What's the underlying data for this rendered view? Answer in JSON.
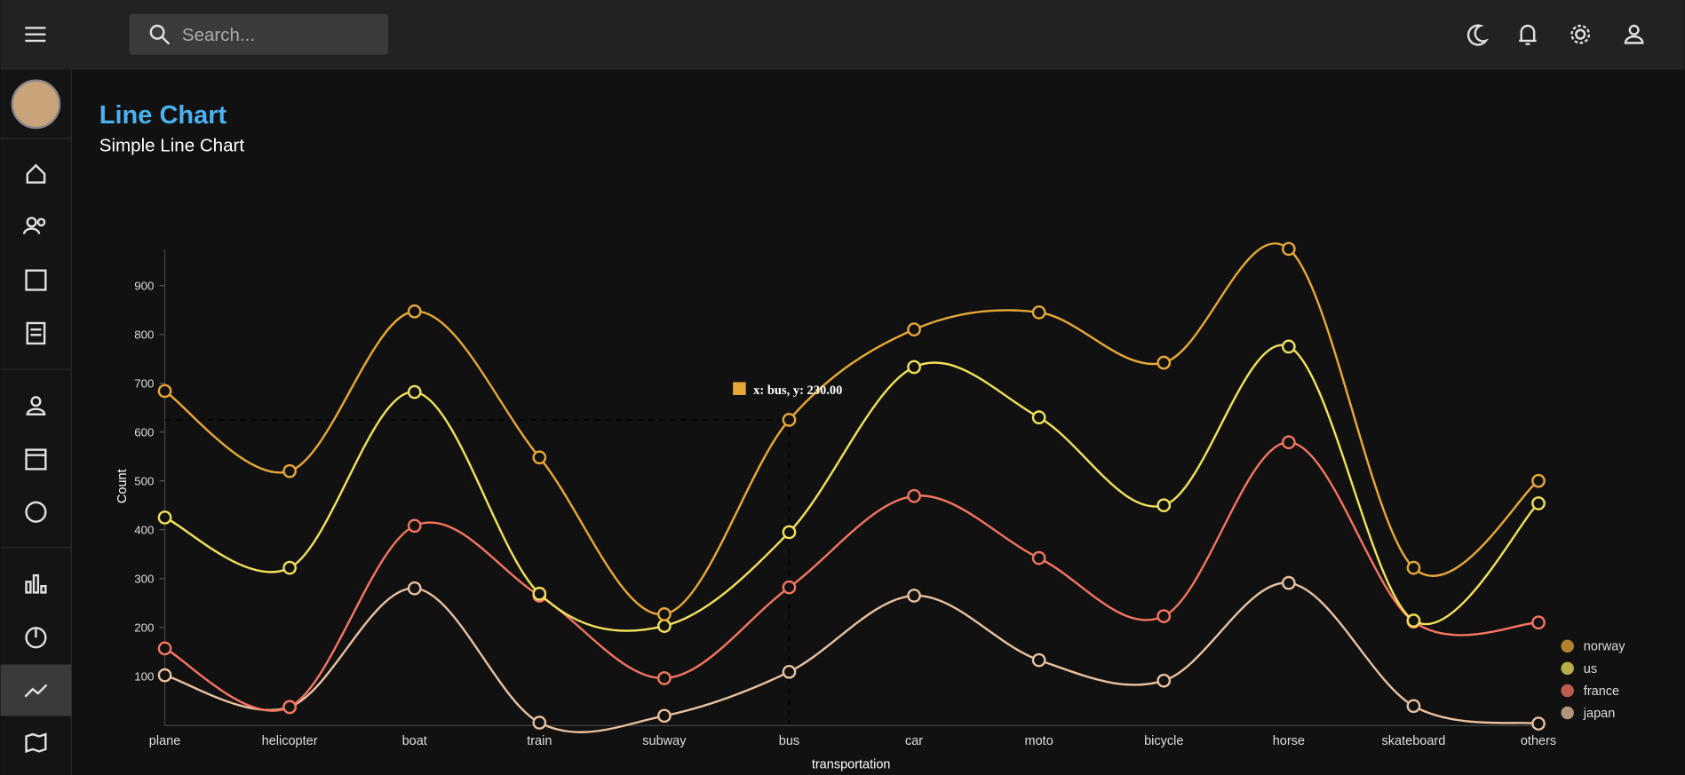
{
  "header": {
    "search_placeholder": "Search..."
  },
  "chart_data": {
    "type": "line",
    "stacked": true,
    "curve": "catmullRom",
    "title": "Line Chart",
    "subtitle": "Simple Line Chart",
    "x_label": "transportation",
    "y_label": "Count",
    "categories": [
      "plane",
      "helicopter",
      "boat",
      "train",
      "subway",
      "bus",
      "car",
      "moto",
      "bicycle",
      "horse",
      "skateboard",
      "others"
    ],
    "series": [
      {
        "name": "norway",
        "color": "#e8a838",
        "values": [
          259,
          198,
          165,
          279,
          24,
          230,
          77,
          215,
          292,
          200,
          108,
          46
        ]
      },
      {
        "name": "us",
        "color": "#f1e15b",
        "values": [
          268,
          285,
          274,
          4,
          107,
          113,
          264,
          288,
          227,
          196,
          2,
          244
        ]
      },
      {
        "name": "france",
        "color": "#f47560",
        "values": [
          55,
          0,
          128,
          260,
          77,
          173,
          204,
          209,
          132,
          288,
          173,
          207
        ]
      },
      {
        "name": "japan",
        "color": "#e8c1a0",
        "values": [
          102,
          37,
          280,
          5,
          19,
          109,
          265,
          133,
          91,
          291,
          39,
          3
        ]
      }
    ],
    "ylim": [
      0,
      976
    ],
    "yticks": [
      100,
      200,
      300,
      400,
      500,
      600,
      700,
      800,
      900
    ],
    "legend": "bottom-right",
    "tooltip": {
      "label": "x: bus, y: 230.00"
    }
  }
}
